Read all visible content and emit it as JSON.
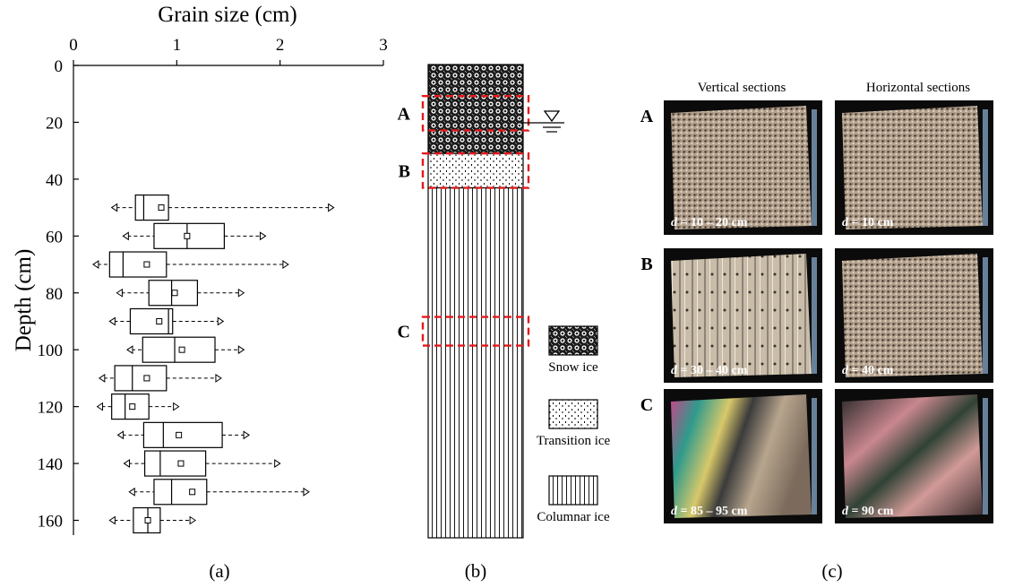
{
  "chart_data": {
    "type": "boxplot",
    "title": "",
    "xlabel": "Grain size (cm)",
    "ylabel": "Depth (cm)",
    "xlim": [
      0,
      3
    ],
    "ylim": [
      0,
      165
    ],
    "x_ticks": [
      "0",
      "1",
      "2",
      "3"
    ],
    "y_ticks": [
      "0",
      "20",
      "40",
      "60",
      "80",
      "100",
      "120",
      "140",
      "160"
    ],
    "x_axis_position": "top",
    "y_axis_inverted": true,
    "grid": false,
    "boxes": [
      {
        "depth": 50,
        "min": 0.37,
        "q1": 0.6,
        "median": 0.68,
        "q3": 0.92,
        "max": 2.52,
        "mean": 0.85
      },
      {
        "depth": 60,
        "min": 0.48,
        "q1": 0.78,
        "median": 1.1,
        "q3": 1.46,
        "max": 1.86,
        "mean": 1.1
      },
      {
        "depth": 70,
        "min": 0.19,
        "q1": 0.35,
        "median": 0.48,
        "q3": 0.9,
        "max": 2.08,
        "mean": 0.71
      },
      {
        "depth": 80,
        "min": 0.42,
        "q1": 0.73,
        "median": 0.95,
        "q3": 1.2,
        "max": 1.65,
        "mean": 0.98
      },
      {
        "depth": 90,
        "min": 0.35,
        "q1": 0.55,
        "median": 0.92,
        "q3": 0.96,
        "max": 1.45,
        "mean": 0.83
      },
      {
        "depth": 100,
        "min": 0.52,
        "q1": 0.67,
        "median": 0.98,
        "q3": 1.37,
        "max": 1.65,
        "mean": 1.05
      },
      {
        "depth": 110,
        "min": 0.25,
        "q1": 0.4,
        "median": 0.57,
        "q3": 0.9,
        "max": 1.43,
        "mean": 0.71
      },
      {
        "depth": 120,
        "min": 0.23,
        "q1": 0.37,
        "median": 0.5,
        "q3": 0.73,
        "max": 1.02,
        "mean": 0.57
      },
      {
        "depth": 130,
        "min": 0.43,
        "q1": 0.68,
        "median": 0.87,
        "q3": 1.44,
        "max": 1.7,
        "mean": 1.02
      },
      {
        "depth": 140,
        "min": 0.49,
        "q1": 0.69,
        "median": 0.84,
        "q3": 1.28,
        "max": 2.0,
        "mean": 1.04
      },
      {
        "depth": 150,
        "min": 0.54,
        "q1": 0.78,
        "median": 0.95,
        "q3": 1.29,
        "max": 2.28,
        "mean": 1.15
      },
      {
        "depth": 160,
        "min": 0.35,
        "q1": 0.58,
        "median": 0.72,
        "q3": 0.84,
        "max": 1.18,
        "mean": 0.72
      }
    ]
  },
  "panel_labels": {
    "a": "(a)",
    "b": "(b)",
    "c": "(c)"
  },
  "column_panel": {
    "zones": [
      {
        "name": "Snow ice",
        "from_depth": 0,
        "to_depth": 31
      },
      {
        "name": "Transition ice",
        "from_depth": 31,
        "to_depth": 43
      },
      {
        "name": "Columnar ice",
        "from_depth": 43,
        "to_depth": 165
      }
    ],
    "sample_markers": [
      {
        "label": "A",
        "from_depth": 11,
        "to_depth": 23
      },
      {
        "label": "B",
        "from_depth": 31,
        "to_depth": 43
      },
      {
        "label": "C",
        "from_depth": 88,
        "to_depth": 98
      }
    ],
    "marker_color": "#e31a1c",
    "water_level_symbol": "water-table-icon",
    "legend": [
      "Snow ice",
      "Transition ice",
      "Columnar ice"
    ]
  },
  "sections_panel": {
    "column_headers": [
      "Vertical sections",
      "Horizontal sections"
    ],
    "rows": [
      {
        "label": "A",
        "vertical_caption_var": "d",
        "vertical_caption": " = 10 – 20 cm",
        "horizontal_caption_var": "d",
        "horizontal_caption": " = 10 cm"
      },
      {
        "label": "B",
        "vertical_caption_var": "d",
        "vertical_caption": " = 30 – 40 cm",
        "horizontal_caption_var": "d",
        "horizontal_caption": " = 40 cm"
      },
      {
        "label": "C",
        "vertical_caption_var": "d",
        "vertical_caption": " = 85 – 95 cm",
        "horizontal_caption_var": "d",
        "horizontal_caption": " = 90 cm"
      }
    ]
  }
}
